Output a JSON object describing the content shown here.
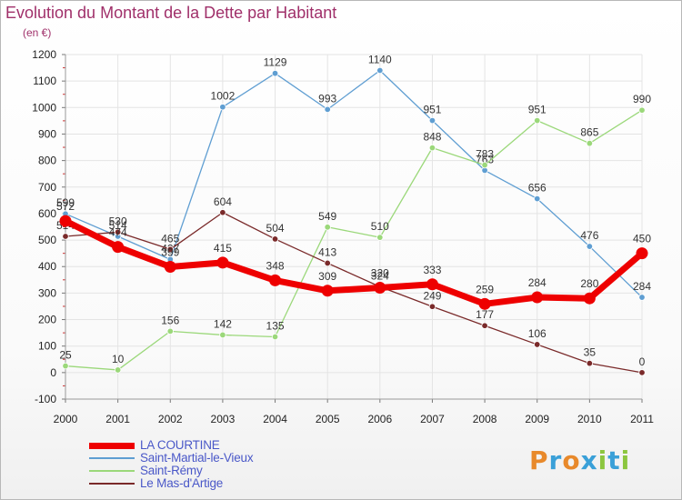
{
  "title": "Evolution du Montant de la Dette par Habitant",
  "unit": "(en €)",
  "logo": {
    "text": "Proxiti",
    "colors": [
      "#e8892b",
      "#3aa0d8",
      "#e8892b",
      "#3aa0d8",
      "#8cc63f",
      "#3aa0d8",
      "#8cc63f"
    ]
  },
  "chart_data": {
    "type": "line",
    "categories": [
      "2000",
      "2001",
      "2002",
      "2003",
      "2004",
      "2005",
      "2006",
      "2007",
      "2008",
      "2009",
      "2010",
      "2011"
    ],
    "ylim": [
      -100,
      1200
    ],
    "yticks": [
      -100,
      0,
      100,
      200,
      300,
      400,
      500,
      600,
      700,
      800,
      900,
      1000,
      1100,
      1200
    ],
    "grid": true,
    "series": [
      {
        "name": "Saint-Martial-le-Vieux",
        "color": "#5f9ed2",
        "values": [
          599,
          514,
          427,
          1002,
          1129,
          993,
          1140,
          951,
          763,
          656,
          476,
          284
        ]
      },
      {
        "name": "Saint-Rémy",
        "color": "#9bd87a",
        "values": [
          25,
          10,
          156,
          142,
          135,
          549,
          510,
          848,
          783,
          951,
          865,
          990
        ]
      },
      {
        "name": "Le Mas-d'Artige",
        "color": "#7a2a2a",
        "values": [
          514,
          530,
          465,
          604,
          504,
          413,
          324,
          249,
          177,
          106,
          35,
          0
        ]
      },
      {
        "name": "LA COURTINE",
        "color": "#ee0000",
        "values": [
          572,
          474,
          399,
          415,
          348,
          309,
          320,
          333,
          259,
          284,
          280,
          450
        ]
      }
    ],
    "legend": [
      "LA COURTINE",
      "Saint-Martial-le-Vieux",
      "Saint-Rémy",
      "Le Mas-d'Artige"
    ]
  }
}
